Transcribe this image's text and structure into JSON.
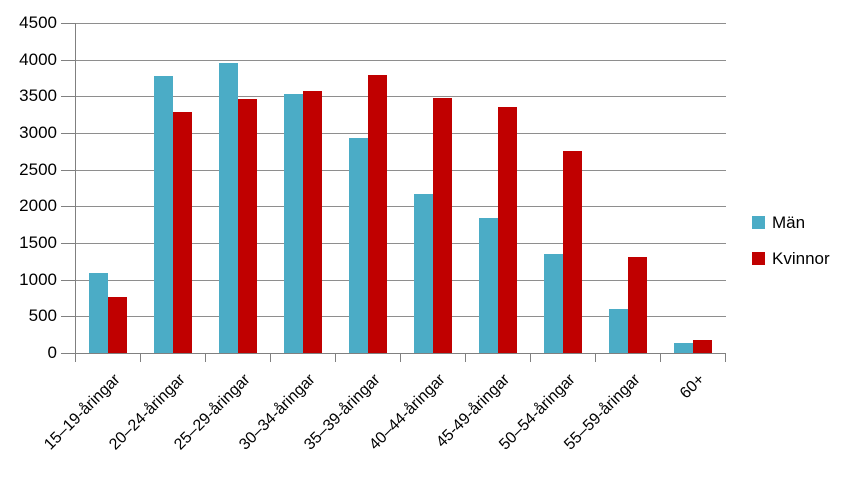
{
  "chart_data": {
    "type": "bar",
    "title": "",
    "categories": [
      "15–19-åringar",
      "20–24-åringar",
      "25–29-åringar",
      "30–34-åringar",
      "35–39-åringar",
      "40–44-åringar",
      "45-49-åringar",
      "50–54-åringar",
      "55–59-åringar",
      "60+"
    ],
    "series": [
      {
        "name": "Män",
        "color": "#4BACC6",
        "values": [
          1090,
          3780,
          3960,
          3530,
          2930,
          2170,
          1840,
          1350,
          600,
          130
        ]
      },
      {
        "name": "Kvinnor",
        "color": "#C00000",
        "values": [
          760,
          3290,
          3460,
          3570,
          3790,
          3480,
          3360,
          2750,
          1310,
          180
        ]
      }
    ],
    "xlabel": "",
    "ylabel": "",
    "ylim": [
      0,
      4500
    ],
    "yticks": [
      0,
      500,
      1000,
      1500,
      2000,
      2500,
      3000,
      3500,
      4000,
      4500
    ],
    "grid": true,
    "legend_position": "right",
    "x_tick_label_rotation_deg": 45
  },
  "colors": {
    "axis": "#808080",
    "gridline": "#8E8E8E",
    "text": "#000000",
    "background": "#FFFFFF"
  }
}
